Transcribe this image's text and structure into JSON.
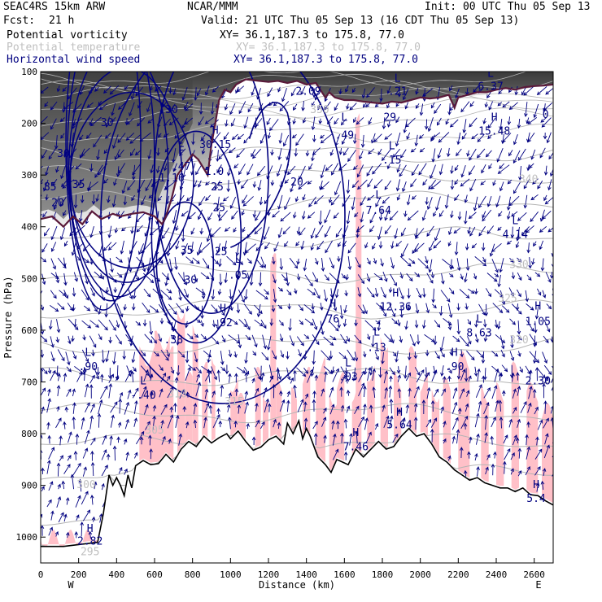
{
  "header": {
    "model": "SEAC4RS 15km ARW",
    "org": "NCAR/MMM",
    "init": "Init: 00 UTC Thu 05 Sep 13",
    "fcst_label": "Fcst:",
    "fcst_value": "21 h",
    "valid": "Valid: 21 UTC Thu 05 Sep 13 (16 CDT Thu 05 Sep 13)"
  },
  "fields": [
    {
      "name": "Potential vorticity",
      "xy": "XY=  36.1,187.3 to 175.8, 77.0",
      "color": "#000000"
    },
    {
      "name": "Potential temperature",
      "xy": "XY=  36.1,187.3 to 175.8, 77.0",
      "color": "#c0c0c0"
    },
    {
      "name": "Horizontal wind speed",
      "xy": "XY=  36.1,187.3 to 175.8, 77.0",
      "color": "#000080"
    }
  ],
  "chart_data": {
    "type": "cross-section",
    "xlabel": "Distance (km)",
    "ylabel": "Pressure (hPa)",
    "xlim": [
      0,
      2700
    ],
    "ylim": [
      1050,
      100
    ],
    "x_ticks": [
      "0",
      "200",
      "400",
      "600",
      "800",
      "1000",
      "1200",
      "1400",
      "1600",
      "1800",
      "2000",
      "2200",
      "2400",
      "2600"
    ],
    "y_ticks": [
      "100",
      "200",
      "300",
      "400",
      "500",
      "600",
      "700",
      "800",
      "900",
      "1000"
    ],
    "x_end_labels": {
      "left": "W",
      "right": "E"
    },
    "colors": {
      "pv_shading": "#555555",
      "rh_fill": "#ffc0c8",
      "wind": "#000080",
      "theta": "#b4b4b4",
      "tropopause": "#5a1a3a",
      "terrain": "#000000"
    },
    "terrain_surface_hpa": [
      [
        0,
        1018
      ],
      [
        120,
        1018
      ],
      [
        300,
        1010
      ],
      [
        330,
        955
      ],
      [
        360,
        880
      ],
      [
        380,
        900
      ],
      [
        400,
        885
      ],
      [
        420,
        900
      ],
      [
        440,
        920
      ],
      [
        460,
        880
      ],
      [
        480,
        905
      ],
      [
        500,
        862
      ],
      [
        540,
        852
      ],
      [
        580,
        860
      ],
      [
        620,
        858
      ],
      [
        660,
        840
      ],
      [
        700,
        855
      ],
      [
        740,
        830
      ],
      [
        780,
        815
      ],
      [
        820,
        825
      ],
      [
        860,
        805
      ],
      [
        900,
        818
      ],
      [
        940,
        808
      ],
      [
        980,
        800
      ],
      [
        1000,
        810
      ],
      [
        1040,
        795
      ],
      [
        1080,
        815
      ],
      [
        1120,
        832
      ],
      [
        1160,
        826
      ],
      [
        1200,
        812
      ],
      [
        1240,
        805
      ],
      [
        1280,
        820
      ],
      [
        1300,
        780
      ],
      [
        1330,
        800
      ],
      [
        1360,
        775
      ],
      [
        1380,
        810
      ],
      [
        1400,
        790
      ],
      [
        1420,
        805
      ],
      [
        1460,
        845
      ],
      [
        1500,
        860
      ],
      [
        1530,
        875
      ],
      [
        1560,
        850
      ],
      [
        1590,
        855
      ],
      [
        1620,
        860
      ],
      [
        1660,
        830
      ],
      [
        1700,
        845
      ],
      [
        1740,
        830
      ],
      [
        1780,
        815
      ],
      [
        1820,
        830
      ],
      [
        1860,
        825
      ],
      [
        1900,
        805
      ],
      [
        1940,
        790
      ],
      [
        1980,
        805
      ],
      [
        2020,
        800
      ],
      [
        2060,
        820
      ],
      [
        2100,
        845
      ],
      [
        2140,
        855
      ],
      [
        2180,
        870
      ],
      [
        2220,
        880
      ],
      [
        2260,
        890
      ],
      [
        2300,
        885
      ],
      [
        2340,
        895
      ],
      [
        2380,
        900
      ],
      [
        2420,
        905
      ],
      [
        2460,
        905
      ],
      [
        2500,
        912
      ],
      [
        2540,
        905
      ],
      [
        2580,
        918
      ],
      [
        2620,
        920
      ],
      [
        2660,
        930
      ],
      [
        2700,
        938
      ]
    ],
    "tropopause_2pvu_hpa": [
      [
        0,
        385
      ],
      [
        60,
        380
      ],
      [
        120,
        400
      ],
      [
        170,
        380
      ],
      [
        220,
        395
      ],
      [
        270,
        370
      ],
      [
        320,
        385
      ],
      [
        380,
        375
      ],
      [
        420,
        380
      ],
      [
        480,
        375
      ],
      [
        540,
        372
      ],
      [
        600,
        380
      ],
      [
        640,
        395
      ],
      [
        660,
        380
      ],
      [
        690,
        345
      ],
      [
        720,
        300
      ],
      [
        760,
        280
      ],
      [
        800,
        260
      ],
      [
        830,
        270
      ],
      [
        880,
        300
      ],
      [
        900,
        240
      ],
      [
        920,
        200
      ],
      [
        940,
        155
      ],
      [
        970,
        135
      ],
      [
        1000,
        140
      ],
      [
        1030,
        125
      ],
      [
        1080,
        115
      ],
      [
        1150,
        118
      ],
      [
        1200,
        120
      ],
      [
        1250,
        118
      ],
      [
        1300,
        122
      ],
      [
        1350,
        118
      ],
      [
        1400,
        125
      ],
      [
        1450,
        122
      ],
      [
        1500,
        150
      ],
      [
        1520,
        140
      ],
      [
        1550,
        150
      ],
      [
        1600,
        155
      ],
      [
        1650,
        155
      ],
      [
        1700,
        158
      ],
      [
        1750,
        160
      ],
      [
        1800,
        162
      ],
      [
        1850,
        158
      ],
      [
        1900,
        160
      ],
      [
        1950,
        155
      ],
      [
        2000,
        150
      ],
      [
        2050,
        152
      ],
      [
        2100,
        150
      ],
      [
        2150,
        145
      ],
      [
        2180,
        170
      ],
      [
        2200,
        150
      ],
      [
        2250,
        145
      ],
      [
        2300,
        140
      ],
      [
        2350,
        140
      ],
      [
        2400,
        135
      ],
      [
        2450,
        132
      ],
      [
        2500,
        135
      ],
      [
        2550,
        130
      ],
      [
        2600,
        128
      ],
      [
        2650,
        127
      ],
      [
        2700,
        125
      ]
    ],
    "labels": [
      {
        "text": "L",
        "x": 1600,
        "p": 195,
        "color": "#000080"
      },
      {
        "text": ".49",
        "x": 1600,
        "p": 230,
        "color": "#000080"
      },
      {
        "text": "L",
        "x": 1880,
        "p": 120,
        "color": "#000080"
      },
      {
        "text": ".21",
        "x": 1880,
        "p": 145,
        "color": "#000080"
      },
      {
        "text": "L",
        "x": 2370,
        "p": 110,
        "color": "#000080"
      },
      {
        "text": "6.37",
        "x": 2370,
        "p": 135,
        "color": "#000080"
      },
      {
        "text": "H",
        "x": 2390,
        "p": 195,
        "color": "#000080"
      },
      {
        "text": "15.48",
        "x": 2390,
        "p": 222,
        "color": "#000080"
      },
      {
        "text": "L",
        "x": 1850,
        "p": 250,
        "color": "#000080"
      },
      {
        "text": ".15",
        "x": 1850,
        "p": 278,
        "color": "#000080"
      },
      {
        "text": "L",
        "x": 1780,
        "p": 345,
        "color": "#000080"
      },
      {
        "text": "7.64",
        "x": 1780,
        "p": 375,
        "color": "#000080"
      },
      {
        "text": "L",
        "x": 2500,
        "p": 395,
        "color": "#000080"
      },
      {
        "text": "4.14",
        "x": 2500,
        "p": 422,
        "color": "#000080"
      },
      {
        "text": "L",
        "x": 1040,
        "p": 470,
        "color": "#000080"
      },
      {
        "text": ".05",
        "x": 1040,
        "p": 500,
        "color": "#000080"
      },
      {
        "text": "H",
        "x": 1870,
        "p": 535,
        "color": "#000080"
      },
      {
        "text": "12.36",
        "x": 1870,
        "p": 562,
        "color": "#000080"
      },
      {
        "text": "H",
        "x": 1540,
        "p": 555,
        "color": "#000080"
      },
      {
        "text": "76",
        "x": 1540,
        "p": 585,
        "color": "#000080"
      },
      {
        "text": "H",
        "x": 2620,
        "p": 560,
        "color": "#000080"
      },
      {
        "text": "1.05",
        "x": 2620,
        "p": 590,
        "color": "#000080"
      },
      {
        "text": "L",
        "x": 2310,
        "p": 585,
        "color": "#000080"
      },
      {
        "text": "8.63",
        "x": 2310,
        "p": 612,
        "color": "#000080"
      },
      {
        "text": "H",
        "x": 960,
        "p": 565,
        "color": "#000080"
      },
      {
        "text": ".92",
        "x": 960,
        "p": 592,
        "color": "#000080"
      },
      {
        "text": "L",
        "x": 1770,
        "p": 610,
        "color": "#000080"
      },
      {
        "text": ".13",
        "x": 1770,
        "p": 640,
        "color": "#000080"
      },
      {
        "text": "H",
        "x": 2180,
        "p": 650,
        "color": "#000080"
      },
      {
        "text": ".90",
        "x": 2180,
        "p": 677,
        "color": "#000080"
      },
      {
        "text": "L",
        "x": 1620,
        "p": 670,
        "color": "#000080"
      },
      {
        "text": ".03",
        "x": 1620,
        "p": 697,
        "color": "#000080"
      },
      {
        "text": "L",
        "x": 700,
        "p": 600,
        "color": "#000080"
      },
      {
        "text": ".38",
        "x": 700,
        "p": 625,
        "color": "#000080"
      },
      {
        "text": "L",
        "x": 250,
        "p": 650,
        "color": "#000080"
      },
      {
        "text": ".90",
        "x": 250,
        "p": 677,
        "color": "#000080"
      },
      {
        "text": "L",
        "x": 540,
        "p": 705,
        "color": "#000080"
      },
      {
        "text": "-.40",
        "x": 540,
        "p": 732,
        "color": "#000080"
      },
      {
        "text": "2.30",
        "x": 2620,
        "p": 705,
        "color": "#000080"
      },
      {
        "text": "H",
        "x": 1890,
        "p": 765,
        "color": "#000080"
      },
      {
        "text": "5.64",
        "x": 1890,
        "p": 790,
        "color": "#000080"
      },
      {
        "text": "H",
        "x": 1660,
        "p": 805,
        "color": "#000080"
      },
      {
        "text": "7.46",
        "x": 1660,
        "p": 832,
        "color": "#000080"
      },
      {
        "text": "H",
        "x": 2610,
        "p": 905,
        "color": "#000080"
      },
      {
        "text": "5.4",
        "x": 2610,
        "p": 932,
        "color": "#000080"
      },
      {
        "text": "H",
        "x": 260,
        "p": 990,
        "color": "#000080"
      },
      {
        "text": "2.82",
        "x": 260,
        "p": 1015,
        "color": "#000080"
      },
      {
        "text": "H",
        "x": 920,
        "p": 220,
        "color": "#000080"
      },
      {
        "text": "30.15",
        "x": 920,
        "p": 248,
        "color": "#000080"
      },
      {
        "text": "F",
        "x": 740,
        "p": 260,
        "color": "#000080"
      },
      {
        "text": ".47",
        "x": 740,
        "p": 290,
        "color": "#000080"
      },
      {
        "text": "1.16",
        "x": 690,
        "p": 312,
        "color": "#000080"
      },
      {
        "text": "30",
        "x": 690,
        "p": 180,
        "color": "#000080"
      },
      {
        "text": "35",
        "x": 770,
        "p": 452,
        "color": "#000080"
      },
      {
        "text": "30",
        "x": 790,
        "p": 510,
        "color": "#000080"
      },
      {
        "text": "25",
        "x": 940,
        "p": 370,
        "color": "#000080"
      },
      {
        "text": "25",
        "x": 950,
        "p": 455,
        "color": "#000080"
      },
      {
        "text": "20",
        "x": 1350,
        "p": 320,
        "color": "#000080"
      },
      {
        "text": "1.0",
        "x": 915,
        "p": 300,
        "color": "#000080"
      },
      {
        "text": "25",
        "x": 930,
        "p": 330,
        "color": "#000080"
      },
      {
        "text": "35",
        "x": 200,
        "p": 325,
        "color": "#000080"
      },
      {
        "text": "30",
        "x": 120,
        "p": 265,
        "color": "#000080"
      },
      {
        "text": "20",
        "x": 90,
        "p": 360,
        "color": "#000080"
      },
      {
        "text": "85",
        "x": 50,
        "p": 330,
        "color": "#000080"
      },
      {
        "text": "30",
        "x": 350,
        "p": 205,
        "color": "#000080"
      },
      {
        "text": "2.09",
        "x": 1410,
        "p": 145,
        "color": "#000080"
      },
      {
        "text": "29",
        "x": 1840,
        "p": 195,
        "color": "#000080"
      },
      {
        "text": "0",
        "x": 2660,
        "p": 190,
        "color": "#000080"
      },
      {
        "text": "350",
        "x": 1470,
        "p": 180,
        "color": "#c0c0c0"
      },
      {
        "text": "340",
        "x": 2570,
        "p": 315,
        "color": "#c0c0c0"
      },
      {
        "text": "330",
        "x": 2520,
        "p": 480,
        "color": "#c0c0c0"
      },
      {
        "text": "325",
        "x": 2460,
        "p": 545,
        "color": "#c0c0c0"
      },
      {
        "text": "320",
        "x": 2520,
        "p": 625,
        "color": "#c0c0c0"
      },
      {
        "text": "315",
        "x": 1020,
        "p": 745,
        "color": "#c0c0c0"
      },
      {
        "text": "310",
        "x": 720,
        "p": 730,
        "color": "#c0c0c0"
      },
      {
        "text": "305",
        "x": 600,
        "p": 800,
        "color": "#c0c0c0"
      },
      {
        "text": "300",
        "x": 240,
        "p": 905,
        "color": "#c0c0c0"
      },
      {
        "text": "295",
        "x": 260,
        "p": 1035,
        "color": "#c0c0c0"
      }
    ]
  }
}
